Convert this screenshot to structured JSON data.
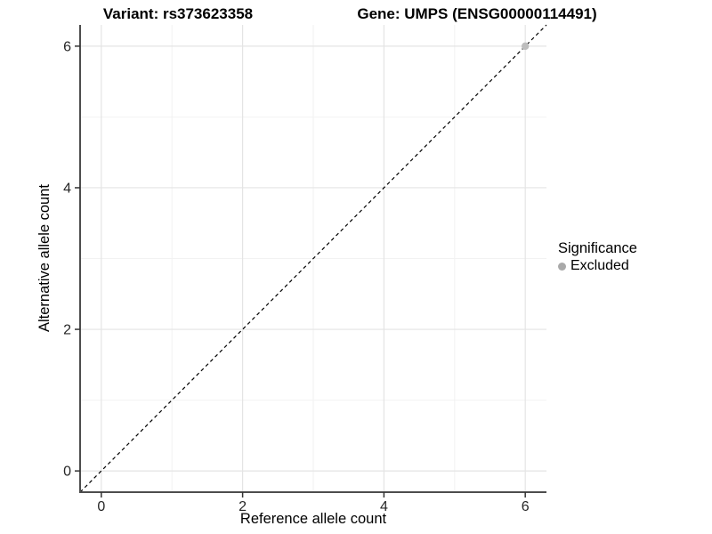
{
  "titles": {
    "variant": "Variant: rs373623358",
    "gene": "Gene: UMPS (ENSG00000114491)"
  },
  "axes": {
    "x_label": "Reference allele count",
    "y_label": "Alternative allele count"
  },
  "legend": {
    "title": "Significance",
    "items": [
      {
        "label": "Excluded",
        "color": "#a9a9a9",
        "marker": "circle-icon"
      }
    ]
  },
  "colors": {
    "background": "#ffffff",
    "axis_line": "#4d4d4d",
    "tick_mark": "#333333",
    "tick_label": "#262626",
    "grid_major": "#e4e4e4",
    "grid_minor": "#f2f2f2",
    "reference_line": "#000000",
    "title_text": "#000000"
  },
  "chart_data": {
    "type": "scatter",
    "title": "Variant: rs373623358 — Gene: UMPS (ENSG00000114491)",
    "xlabel": "Reference allele count",
    "ylabel": "Alternative allele count",
    "xlim": [
      -0.3,
      6.3
    ],
    "ylim": [
      -0.3,
      6.3
    ],
    "xticks": [
      0,
      2,
      4,
      6
    ],
    "yticks": [
      0,
      2,
      4,
      6
    ],
    "xticks_minor": [
      1,
      3,
      5
    ],
    "yticks_minor": [
      1,
      3,
      5
    ],
    "grid": "major+minor",
    "points": [
      {
        "x": 6,
        "y": 6,
        "series": "Excluded",
        "color": "#bdbdbd",
        "radius_px": 4.2
      }
    ],
    "reference_line": {
      "style": "dashed",
      "from": [
        -0.3,
        -0.3
      ],
      "to": [
        6.3,
        6.3
      ],
      "description": "identity line y = x"
    },
    "legend": {
      "title": "Significance",
      "entries": [
        "Excluded"
      ],
      "position": "right"
    }
  }
}
